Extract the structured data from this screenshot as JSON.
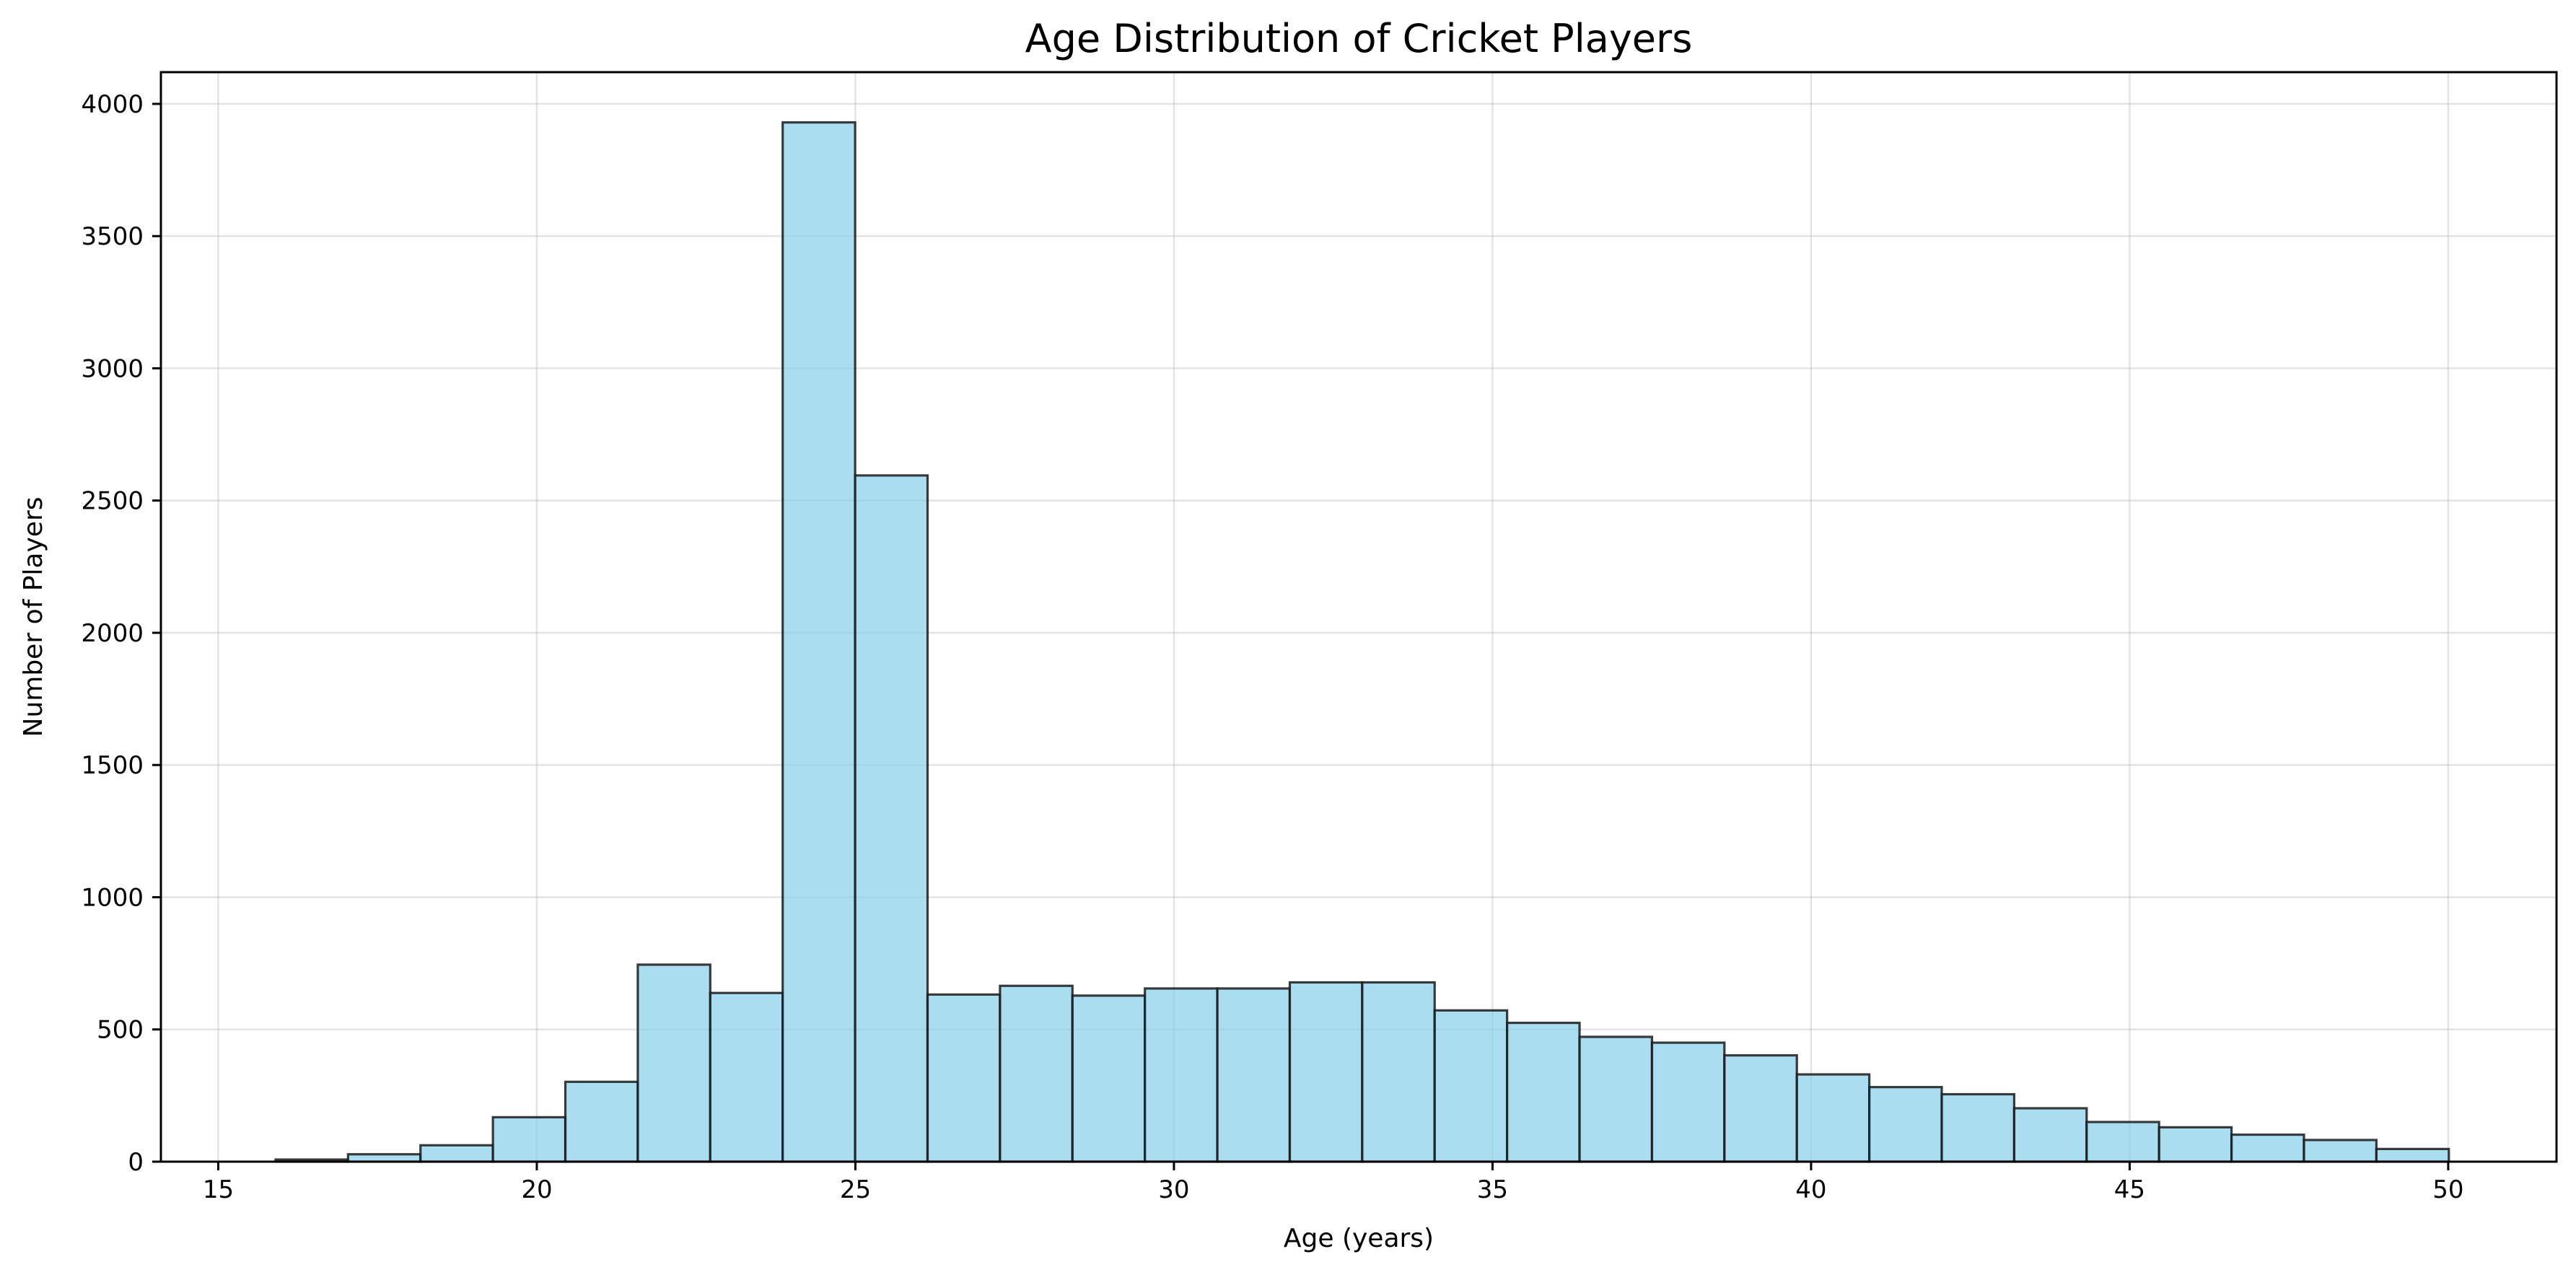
{
  "chart_data": {
    "type": "bar",
    "title": "Age Distribution of Cricket Players",
    "xlabel": "Age (years)",
    "ylabel": "Number of Players",
    "xlim": [
      14.1,
      51.7
    ],
    "ylim": [
      0,
      4120
    ],
    "xticks": [
      15,
      20,
      25,
      30,
      35,
      40,
      45,
      50
    ],
    "yticks": [
      0,
      500,
      1000,
      1500,
      2000,
      2500,
      3000,
      3500,
      4000
    ],
    "grid": true,
    "bar_color": "#87CEEB",
    "edge_color": "#000000",
    "bin_start": 15.9,
    "bin_width": 1.137,
    "values": [
      8,
      28,
      62,
      168,
      302,
      745,
      638,
      3930,
      2595,
      632,
      665,
      628,
      655,
      655,
      678,
      678,
      572,
      525,
      472,
      450,
      402,
      330,
      282,
      255,
      202,
      150,
      130,
      102,
      82,
      48
    ]
  }
}
